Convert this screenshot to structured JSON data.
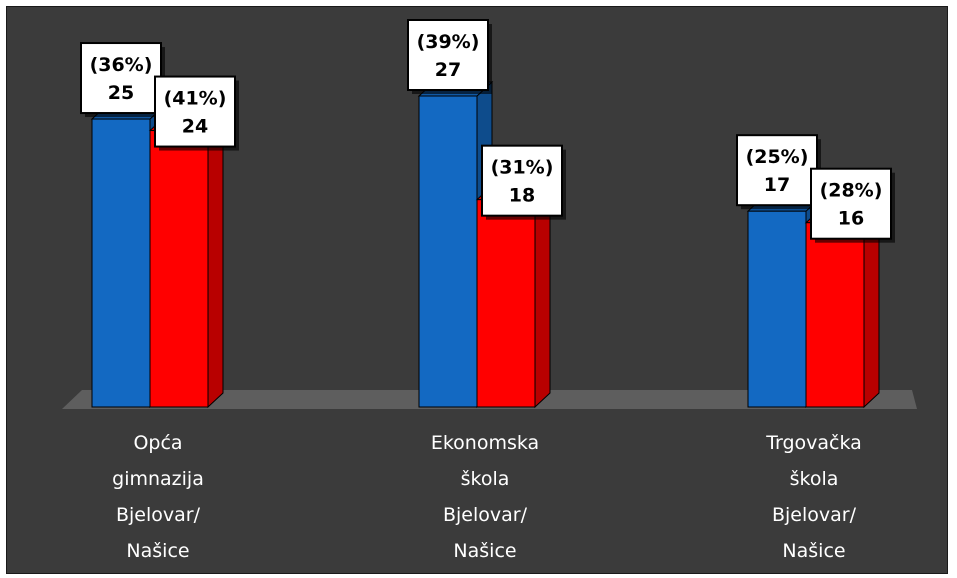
{
  "chart_data": {
    "type": "bar",
    "categories": [
      [
        "Opća",
        "gimnazija",
        "Bjelovar/",
        "Našice"
      ],
      [
        "Ekonomska",
        "škola",
        "Bjelovar/",
        "Našice"
      ],
      [
        "Trgovačka",
        "škola",
        "Bjelovar/",
        "Našice"
      ]
    ],
    "series": [
      {
        "values": [
          25,
          27,
          17
        ],
        "percent_labels": [
          "(36%)",
          "(39%)",
          "(25%)"
        ],
        "color": "#1369c2"
      },
      {
        "values": [
          24,
          18,
          16
        ],
        "percent_labels": [
          "(41%)",
          "(31%)",
          "(28%)"
        ],
        "color": "#ff0000"
      }
    ],
    "ylim": [
      0,
      30
    ],
    "grid": false,
    "legend": "none",
    "background": "#3b3b3b",
    "floor_color": "#5e5e5e",
    "label_box_fill": "#ffffff",
    "category_label_color": "#ffffff"
  }
}
